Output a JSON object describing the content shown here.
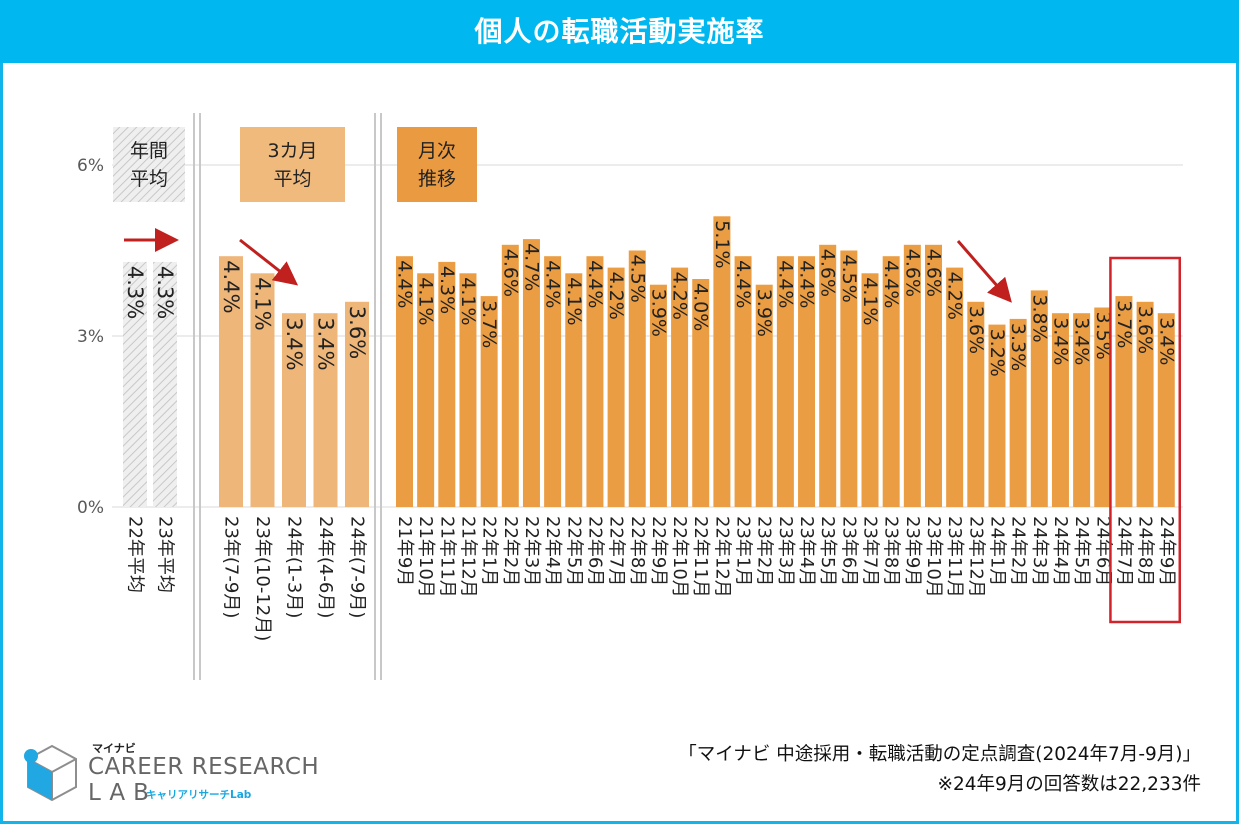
{
  "title": "個人の転職活動実施率",
  "chart_data": {
    "type": "bar",
    "ylim": [
      0,
      6
    ],
    "y_ticks": [
      {
        "value": 0,
        "label": "0%"
      },
      {
        "value": 3,
        "label": "3%"
      },
      {
        "value": 6,
        "label": "6%"
      }
    ],
    "panels": [
      {
        "name": "annual",
        "header": "年間\n平均",
        "categories": [
          "22年平均",
          "23年平均"
        ],
        "values": [
          4.3,
          4.3
        ],
        "labels": [
          "4.3%",
          "4.3%"
        ]
      },
      {
        "name": "quarterly",
        "header": "3カ月\n平均",
        "categories": [
          "23年(7-9月)",
          "23年(10-12月)",
          "24年(1-3月)",
          "24年(4-6月)",
          "24年(7-9月)"
        ],
        "values": [
          4.4,
          4.1,
          3.4,
          3.4,
          3.6
        ],
        "labels": [
          "4.4%",
          "4.1%",
          "3.4%",
          "3.4%",
          "3.6%"
        ]
      },
      {
        "name": "monthly",
        "header": "月次\n推移",
        "categories": [
          "21年9月",
          "21年10月",
          "21年11月",
          "21年12月",
          "22年1月",
          "22年2月",
          "22年3月",
          "22年4月",
          "22年5月",
          "22年6月",
          "22年7月",
          "22年8月",
          "22年9月",
          "22年10月",
          "22年11月",
          "22年12月",
          "23年1月",
          "23年2月",
          "23年3月",
          "23年4月",
          "23年5月",
          "23年6月",
          "23年7月",
          "23年8月",
          "23年9月",
          "23年10月",
          "23年11月",
          "23年12月",
          "24年1月",
          "24年2月",
          "24年3月",
          "24年4月",
          "24年5月",
          "24年6月",
          "24年7月",
          "24年8月",
          "24年9月"
        ],
        "values": [
          4.4,
          4.1,
          4.3,
          4.1,
          3.7,
          4.6,
          4.7,
          4.4,
          4.1,
          4.4,
          4.2,
          4.5,
          3.9,
          4.2,
          4.0,
          5.1,
          4.4,
          3.9,
          4.4,
          4.4,
          4.6,
          4.5,
          4.1,
          4.4,
          4.6,
          4.6,
          4.2,
          3.6,
          3.2,
          3.3,
          3.8,
          3.4,
          3.4,
          3.5,
          3.7,
          3.6,
          3.4
        ],
        "labels": [
          "4.4%",
          "4.1%",
          "4.3%",
          "4.1%",
          "3.7%",
          "4.6%",
          "4.7%",
          "4.4%",
          "4.1%",
          "4.4%",
          "4.2%",
          "4.5%",
          "3.9%",
          "4.2%",
          "4.0%",
          "5.1%",
          "4.4%",
          "3.9%",
          "4.4%",
          "4.4%",
          "4.6%",
          "4.5%",
          "4.1%",
          "4.4%",
          "4.6%",
          "4.6%",
          "4.2%",
          "3.6%",
          "3.2%",
          "3.3%",
          "3.8%",
          "3.4%",
          "3.4%",
          "3.5%",
          "3.7%",
          "3.6%",
          "3.4%"
        ],
        "highlight": [
          "24年7月",
          "24年8月",
          "24年9月"
        ]
      }
    ]
  },
  "colors": {
    "title_bg": "#00b8ef",
    "annual_fill": "#e8e8e8",
    "quarterly_bar": "#eeb679",
    "monthly_bar": "#eb9d43",
    "quarterly_header": "#f0ba7d",
    "monthly_header": "#ea9b42",
    "arrow": "#c0201e",
    "highlight_box": "#d2232a"
  },
  "footer": {
    "source": "「マイナビ 中途採用・転職活動の定点調査(2024年7月-9月)」",
    "note": "※24年9月の回答数は22,233件"
  },
  "logo": {
    "kana": "マイナビ",
    "main": "CAREER RESEARCH",
    "lab": "LAB",
    "sub": "キャリアリサーチLab"
  }
}
